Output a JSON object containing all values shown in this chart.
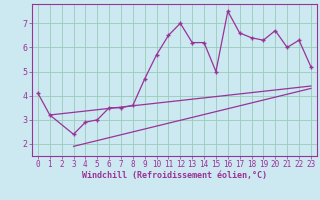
{
  "xlabel": "Windchill (Refroidissement éolien,°C)",
  "background_color": "#cce8f0",
  "grid_color": "#99ccbb",
  "line_color": "#993399",
  "xlim": [
    -0.5,
    23.5
  ],
  "ylim": [
    1.5,
    7.8
  ],
  "xticks": [
    0,
    1,
    2,
    3,
    4,
    5,
    6,
    7,
    8,
    9,
    10,
    11,
    12,
    13,
    14,
    15,
    16,
    17,
    18,
    19,
    20,
    21,
    22,
    23
  ],
  "yticks": [
    2,
    3,
    4,
    5,
    6,
    7
  ],
  "main_x": [
    0,
    1,
    3,
    4,
    5,
    6,
    7,
    8,
    9,
    10,
    11,
    12,
    13,
    14,
    15,
    16,
    17,
    18,
    19,
    20,
    21,
    22,
    23
  ],
  "main_y": [
    4.1,
    3.2,
    2.4,
    2.9,
    3.0,
    3.5,
    3.5,
    3.6,
    4.7,
    5.7,
    6.5,
    7.0,
    6.2,
    6.2,
    5.0,
    7.5,
    6.6,
    6.4,
    6.3,
    6.7,
    6.0,
    6.3,
    5.2
  ],
  "line1_x": [
    1,
    23
  ],
  "line1_y": [
    3.2,
    4.4
  ],
  "line2_x": [
    3,
    23
  ],
  "line2_y": [
    1.9,
    4.3
  ],
  "fontsize_xlabel": 6,
  "tick_fontsize": 5.5
}
